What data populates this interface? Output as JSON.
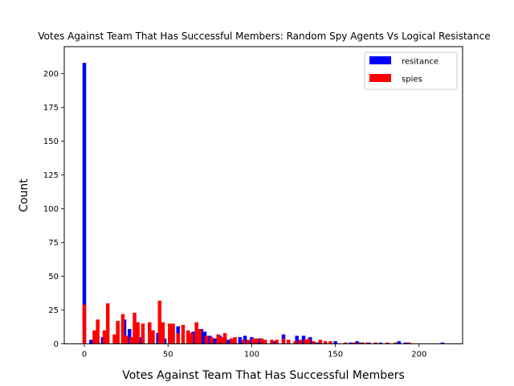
{
  "chart_data": {
    "type": "bar",
    "title": "Votes Against Team That Has Successful Members: Random Spy Agents Vs Logical Resistance",
    "xlabel": "Votes Against Team That Has Successful Members",
    "ylabel": "Count",
    "xlim": [
      -12,
      226
    ],
    "ylim": [
      0,
      220
    ],
    "x_ticks": [
      "0",
      "50",
      "100",
      "150",
      "200"
    ],
    "y_ticks": [
      "0",
      "25",
      "50",
      "75",
      "100",
      "125",
      "150",
      "175",
      "200"
    ],
    "grid": false,
    "legend_position": "top-right",
    "bin_width": 2.15,
    "colors": {
      "resitance": "#0000ff",
      "spies": "#ff0000"
    },
    "series": [
      {
        "name": "resitance",
        "color": "#0000ff",
        "points": [
          [
            0,
            208
          ],
          [
            4,
            3
          ],
          [
            8,
            5
          ],
          [
            11,
            5
          ],
          [
            19,
            4
          ],
          [
            24,
            18
          ],
          [
            27,
            11
          ],
          [
            31,
            5
          ],
          [
            34,
            5
          ],
          [
            40,
            8
          ],
          [
            44,
            8
          ],
          [
            48,
            4
          ],
          [
            53,
            13
          ],
          [
            56,
            13
          ],
          [
            63,
            7
          ],
          [
            65,
            9
          ],
          [
            70,
            11
          ],
          [
            72,
            9
          ],
          [
            75,
            6
          ],
          [
            78,
            4
          ],
          [
            81,
            6
          ],
          [
            84,
            5
          ],
          [
            86,
            3
          ],
          [
            88,
            4
          ],
          [
            93,
            5
          ],
          [
            96,
            6
          ],
          [
            100,
            5
          ],
          [
            105,
            4
          ],
          [
            108,
            2
          ],
          [
            113,
            2
          ],
          [
            119,
            7
          ],
          [
            122,
            3
          ],
          [
            127,
            6
          ],
          [
            131,
            6
          ],
          [
            135,
            5
          ],
          [
            139,
            1
          ],
          [
            150,
            2
          ],
          [
            159,
            1
          ],
          [
            163,
            2
          ],
          [
            166,
            1
          ],
          [
            170,
            1
          ],
          [
            177,
            1
          ],
          [
            188,
            2
          ],
          [
            192,
            1
          ],
          [
            214,
            1
          ]
        ]
      },
      {
        "name": "spies",
        "color": "#ff0000",
        "points": [
          [
            0,
            29
          ],
          [
            6,
            10
          ],
          [
            8,
            18
          ],
          [
            12,
            10
          ],
          [
            14,
            30
          ],
          [
            18,
            7
          ],
          [
            20,
            17
          ],
          [
            23,
            22
          ],
          [
            25,
            6
          ],
          [
            28,
            5
          ],
          [
            30,
            23
          ],
          [
            32,
            16
          ],
          [
            35,
            15
          ],
          [
            39,
            16
          ],
          [
            41,
            10
          ],
          [
            45,
            32
          ],
          [
            47,
            16
          ],
          [
            51,
            15
          ],
          [
            53,
            15
          ],
          [
            56,
            8
          ],
          [
            59,
            14
          ],
          [
            62,
            10
          ],
          [
            64,
            8
          ],
          [
            67,
            16
          ],
          [
            69,
            11
          ],
          [
            73,
            6
          ],
          [
            76,
            5
          ],
          [
            80,
            7
          ],
          [
            82,
            5
          ],
          [
            84,
            8
          ],
          [
            88,
            4
          ],
          [
            90,
            5
          ],
          [
            95,
            3
          ],
          [
            98,
            3
          ],
          [
            101,
            4
          ],
          [
            103,
            4
          ],
          [
            106,
            4
          ],
          [
            108,
            3
          ],
          [
            112,
            3
          ],
          [
            115,
            3
          ],
          [
            119,
            4
          ],
          [
            122,
            3
          ],
          [
            126,
            2
          ],
          [
            129,
            3
          ],
          [
            132,
            3
          ],
          [
            134,
            4
          ],
          [
            137,
            2
          ],
          [
            141,
            3
          ],
          [
            144,
            2
          ],
          [
            147,
            2
          ],
          [
            156,
            1
          ],
          [
            161,
            1
          ],
          [
            165,
            1
          ],
          [
            169,
            1
          ],
          [
            174,
            1
          ],
          [
            181,
            1
          ],
          [
            186,
            1
          ],
          [
            194,
            1
          ]
        ]
      }
    ]
  }
}
